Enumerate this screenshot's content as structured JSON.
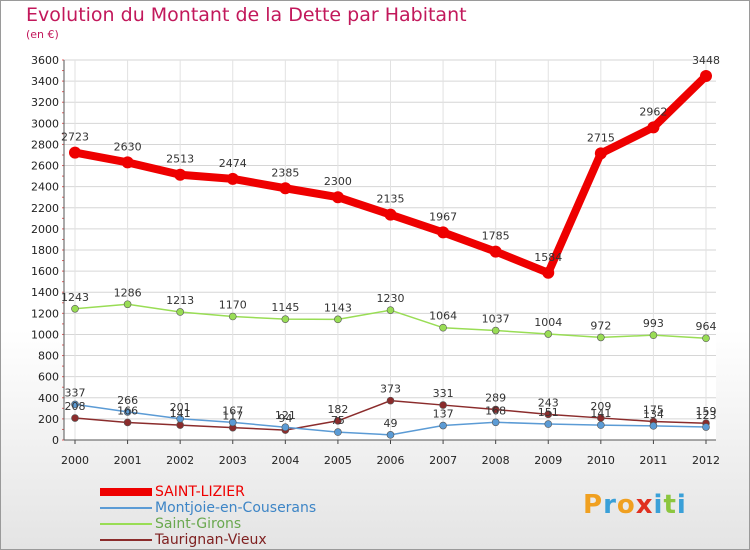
{
  "title": "Evolution du Montant de la Dette par Habitant",
  "subtitle": "(en €)",
  "logo": {
    "letters": [
      "P",
      "r",
      "o",
      "x",
      "i",
      "t",
      "i"
    ],
    "colors": [
      "#f0a020",
      "#3aa0d8",
      "#f0a020",
      "#e03020",
      "#3aa0d8",
      "#8cc63f",
      "#3aa0d8"
    ]
  },
  "chart_data": {
    "type": "line",
    "x": [
      "2000",
      "2001",
      "2002",
      "2003",
      "2004",
      "2005",
      "2006",
      "2007",
      "2008",
      "2009",
      "2010",
      "2011",
      "2012"
    ],
    "ylim": [
      0,
      3600
    ],
    "yticks": [
      0,
      200,
      400,
      600,
      800,
      1000,
      1200,
      1400,
      1600,
      1800,
      2000,
      2200,
      2400,
      2600,
      2800,
      3000,
      3200,
      3400,
      3600
    ],
    "grid": true,
    "legend_position": "bottom-left",
    "series": [
      {
        "name": "SAINT-LIZIER",
        "color": "#ee0000",
        "width": 8,
        "marker": 6,
        "values": [
          2723,
          2630,
          2513,
          2474,
          2385,
          2300,
          2135,
          1967,
          1785,
          1584,
          2715,
          2962,
          3448
        ],
        "labels": [
          "2723",
          "2630",
          "2513",
          "2474",
          "2385",
          "2300",
          "2135",
          "1967",
          "1785",
          "1584",
          "2715",
          "2962",
          "3448"
        ]
      },
      {
        "name": "Montjoie-en-Couserans",
        "color": "#5b9bd5",
        "width": 1.5,
        "marker": 3.5,
        "values": [
          337,
          266,
          201,
          167,
          121,
          75,
          49,
          137,
          168,
          151,
          141,
          134,
          123
        ],
        "labels": [
          "337",
          "266",
          "201",
          "167",
          "121",
          "75",
          "49",
          "137",
          "168",
          "151",
          "141",
          "134",
          "123"
        ]
      },
      {
        "name": "Saint-Girons",
        "color": "#99dd55",
        "width": 1.5,
        "marker": 3.5,
        "values": [
          1243,
          1286,
          1213,
          1170,
          1145,
          1143,
          1230,
          1064,
          1037,
          1004,
          972,
          993,
          964
        ],
        "labels": [
          "1243",
          "1286",
          "1213",
          "1170",
          "1145",
          "1143",
          "1230",
          "1064",
          "1037",
          "1004",
          "972",
          "993",
          "964"
        ]
      },
      {
        "name": "Taurignan-Vieux",
        "color": "#8b2c2c",
        "width": 1.5,
        "marker": 3.5,
        "values": [
          208,
          166,
          141,
          117,
          94,
          182,
          373,
          331,
          289,
          243,
          209,
          175,
          159
        ],
        "labels": [
          "208",
          "166",
          "141",
          "117",
          "94",
          "182",
          "373",
          "331",
          "289",
          "243",
          "209",
          "175",
          "159"
        ]
      }
    ]
  }
}
